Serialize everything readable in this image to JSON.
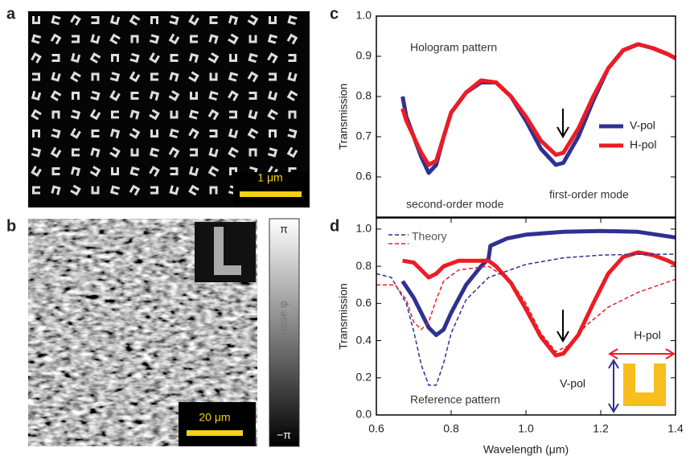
{
  "figure": {
    "panel_labels": [
      "a",
      "b",
      "c",
      "d"
    ],
    "panel_a": {
      "scale_bar": "1 μm"
    },
    "panel_b": {
      "scale_bar": "20 μm",
      "colorbar_label": "Phase φ",
      "colorbar_max": "π",
      "colorbar_min": "−π"
    }
  },
  "chart_data": [
    {
      "type": "line",
      "ylabel": "Transmission",
      "legend": "right",
      "annotations": [
        "Hologram pattern",
        "second-order mode",
        "first-order mode"
      ],
      "xlim": [
        0.6,
        1.4
      ],
      "ylim": [
        0.5,
        1.0
      ],
      "yticks": [
        0.6,
        0.7,
        0.8,
        0.9,
        {
          "value": 1,
          "label": "1.0"
        }
      ],
      "series": [
        {
          "name": "V-pol",
          "color": "#2e3192",
          "style": "solid",
          "x": [
            0.67,
            0.68,
            0.7,
            0.72,
            0.74,
            0.76,
            0.78,
            0.8,
            0.84,
            0.88,
            0.92,
            0.96,
            1.0,
            1.04,
            1.08,
            1.1,
            1.14,
            1.18,
            1.22,
            1.26,
            1.3,
            1.34,
            1.38,
            1.4
          ],
          "values": [
            0.8,
            0.75,
            0.7,
            0.65,
            0.61,
            0.63,
            0.7,
            0.76,
            0.81,
            0.835,
            0.835,
            0.8,
            0.74,
            0.67,
            0.63,
            0.635,
            0.7,
            0.79,
            0.87,
            0.915,
            0.93,
            0.92,
            0.905,
            0.895
          ]
        },
        {
          "name": "H-pol",
          "color": "#ed1c24",
          "style": "solid",
          "x": [
            0.67,
            0.68,
            0.7,
            0.72,
            0.74,
            0.76,
            0.78,
            0.8,
            0.84,
            0.88,
            0.92,
            0.96,
            1.0,
            1.04,
            1.08,
            1.1,
            1.14,
            1.18,
            1.22,
            1.26,
            1.3,
            1.34,
            1.38,
            1.4
          ],
          "values": [
            0.77,
            0.74,
            0.7,
            0.66,
            0.63,
            0.64,
            0.7,
            0.76,
            0.81,
            0.84,
            0.835,
            0.8,
            0.75,
            0.69,
            0.655,
            0.66,
            0.72,
            0.8,
            0.87,
            0.915,
            0.93,
            0.92,
            0.905,
            0.895
          ]
        }
      ]
    },
    {
      "type": "line",
      "xlabel": "Wavelength (μm)",
      "ylabel": "Transmission",
      "legend": "upper left",
      "legend_label": "Theory",
      "annotations": [
        "Reference pattern"
      ],
      "xlim": [
        0.6,
        1.4
      ],
      "ylim": [
        0,
        1.06
      ],
      "xticks": [
        0.6,
        0.8,
        {
          "value": 1,
          "label": "1.0"
        },
        1.2,
        1.4
      ],
      "yticks": [
        {
          "value": 0,
          "label": "0.0"
        },
        0.2,
        0.4,
        0.6,
        0.8,
        {
          "value": 1,
          "label": "1.0"
        }
      ],
      "series": [
        {
          "name": "V-pol",
          "color": "#2e3192",
          "style": "solid",
          "x": [
            0.67,
            0.7,
            0.72,
            0.74,
            0.76,
            0.78,
            0.8,
            0.84,
            0.88,
            0.9,
            0.905,
            0.95,
            1.0,
            1.1,
            1.2,
            1.3,
            1.4
          ],
          "values": [
            0.72,
            0.63,
            0.55,
            0.47,
            0.43,
            0.46,
            0.55,
            0.7,
            0.8,
            0.84,
            0.91,
            0.95,
            0.97,
            0.985,
            0.99,
            0.985,
            0.955
          ]
        },
        {
          "name": "H-pol",
          "color": "#ed1c24",
          "style": "solid",
          "x": [
            0.67,
            0.7,
            0.72,
            0.74,
            0.76,
            0.78,
            0.82,
            0.86,
            0.9,
            0.92,
            0.96,
            1.0,
            1.04,
            1.08,
            1.1,
            1.14,
            1.18,
            1.22,
            1.26,
            1.3,
            1.34,
            1.38,
            1.4
          ],
          "values": [
            0.83,
            0.82,
            0.78,
            0.74,
            0.76,
            0.8,
            0.83,
            0.83,
            0.83,
            0.8,
            0.71,
            0.57,
            0.42,
            0.32,
            0.33,
            0.43,
            0.6,
            0.76,
            0.85,
            0.875,
            0.86,
            0.83,
            0.81
          ]
        },
        {
          "color": "#2e3192",
          "style": "dashed",
          "x": [
            0.6,
            0.64,
            0.68,
            0.7,
            0.72,
            0.74,
            0.76,
            0.78,
            0.8,
            0.84,
            0.9,
            1.0,
            1.1,
            1.2,
            1.3,
            1.4
          ],
          "values": [
            0.76,
            0.74,
            0.6,
            0.45,
            0.27,
            0.16,
            0.16,
            0.28,
            0.44,
            0.62,
            0.74,
            0.81,
            0.845,
            0.86,
            0.865,
            0.865
          ]
        },
        {
          "color": "#ed1c24",
          "style": "dashed",
          "x": [
            0.6,
            0.65,
            0.68,
            0.7,
            0.72,
            0.74,
            0.76,
            0.78,
            0.82,
            0.9,
            0.96,
            1.0,
            1.04,
            1.08,
            1.12,
            1.16,
            1.22,
            1.3,
            1.4
          ],
          "values": [
            0.7,
            0.7,
            0.62,
            0.5,
            0.46,
            0.5,
            0.62,
            0.72,
            0.78,
            0.8,
            0.72,
            0.6,
            0.44,
            0.34,
            0.38,
            0.48,
            0.58,
            0.66,
            0.73
          ]
        }
      ]
    }
  ]
}
